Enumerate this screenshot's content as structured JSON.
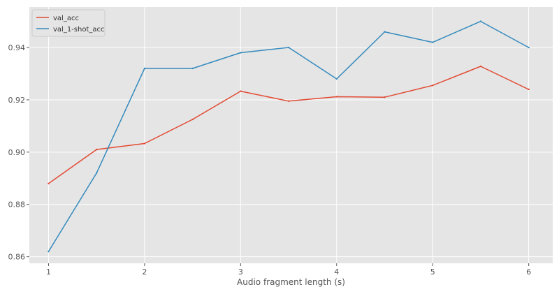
{
  "chart_data": {
    "type": "line",
    "title": "",
    "xlabel": "Audio fragment length (s)",
    "ylabel": "",
    "x": [
      1,
      1.5,
      2,
      2.5,
      3,
      3.5,
      4,
      4.5,
      5,
      5.5,
      6
    ],
    "xticks": [
      "1",
      "2",
      "3",
      "4",
      "5",
      "6"
    ],
    "yticks": [
      "0.86",
      "0.88",
      "0.90",
      "0.92",
      "0.94"
    ],
    "xlim": [
      0.8,
      6.25
    ],
    "ylim": [
      0.8575,
      0.9555
    ],
    "grid": true,
    "legend_position": "top-left",
    "background_color": "#e5e5e5",
    "series": [
      {
        "name": "val_acc",
        "color": "#e24a33",
        "values": [
          0.888,
          0.901,
          0.9033,
          0.9125,
          0.9233,
          0.9195,
          0.9212,
          0.921,
          0.9255,
          0.9328,
          0.924
        ]
      },
      {
        "name": "val_1-shot_acc",
        "color": "#348abd",
        "values": [
          0.862,
          0.892,
          0.932,
          0.932,
          0.938,
          0.94,
          0.928,
          0.946,
          0.942,
          0.95,
          0.94
        ]
      }
    ]
  }
}
